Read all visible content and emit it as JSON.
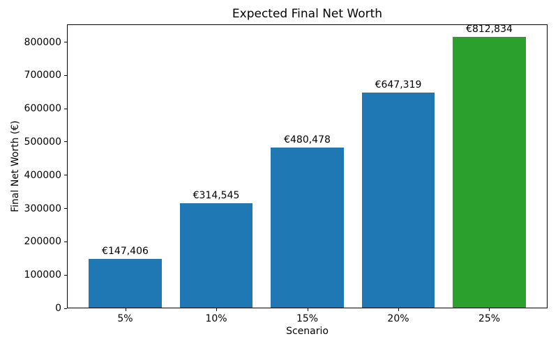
{
  "chart_data": {
    "type": "bar",
    "title": "Expected Final Net Worth",
    "xlabel": "Scenario",
    "ylabel": "Final Net Worth (€)",
    "categories": [
      "5%",
      "10%",
      "15%",
      "20%",
      "25%"
    ],
    "values": [
      147406,
      314545,
      480478,
      647319,
      812834
    ],
    "bar_labels": [
      "€147,406",
      "€314,545",
      "€480,478",
      "€647,319",
      "€812,834"
    ],
    "bar_colors": [
      "#1f77b4",
      "#1f77b4",
      "#1f77b4",
      "#1f77b4",
      "#2ca02c"
    ],
    "yticks": [
      0,
      100000,
      200000,
      300000,
      400000,
      500000,
      600000,
      700000,
      800000
    ],
    "ylim": [
      0,
      853476
    ],
    "xlim": [
      -0.64,
      4.64
    ],
    "bar_width": 0.8,
    "grid": false,
    "legend": null,
    "background_color": "#ffffff",
    "spine_color": "#000000"
  }
}
